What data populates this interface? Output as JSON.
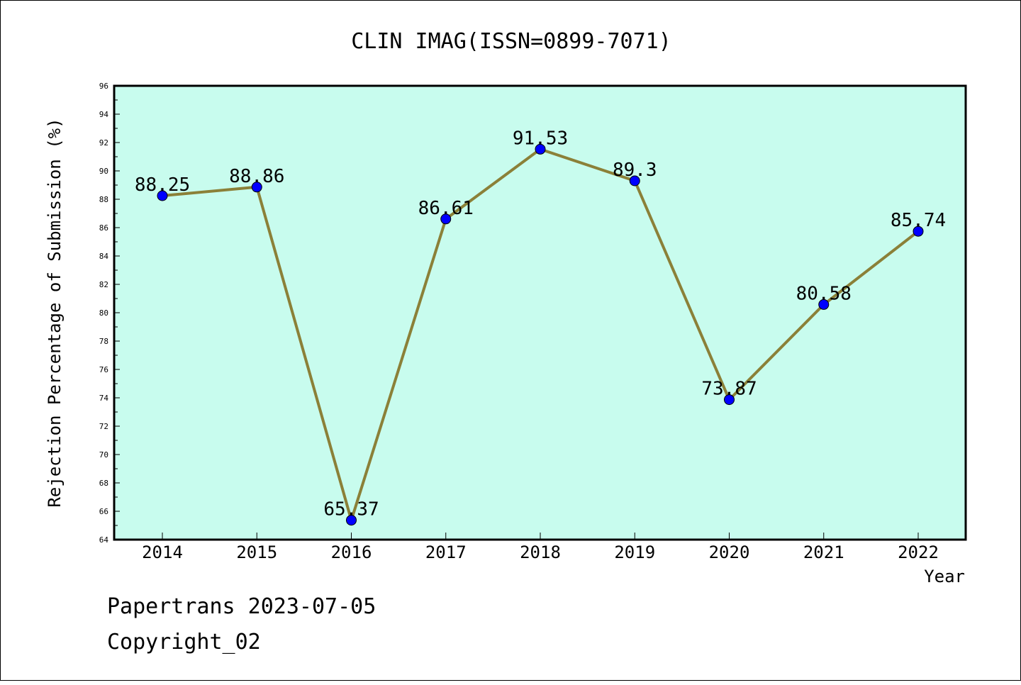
{
  "chart_data": {
    "type": "line",
    "title": "CLIN IMAG(ISSN=0899-7071)",
    "xlabel": "Year",
    "ylabel": "Rejection Percentage of Submission (%)",
    "categories": [
      "2014",
      "2015",
      "2016",
      "2017",
      "2018",
      "2019",
      "2020",
      "2021",
      "2022"
    ],
    "values": [
      88.25,
      88.86,
      65.37,
      86.61,
      91.53,
      89.3,
      73.87,
      80.58,
      85.74
    ],
    "data_labels": [
      "88.25",
      "88.86",
      "65.37",
      "86.61",
      "91.53",
      "89.3",
      "73.87",
      "80.58",
      "85.74"
    ],
    "ylim": [
      64,
      96
    ],
    "yticks": [
      "64",
      "66",
      "68",
      "70",
      "72",
      "74",
      "76",
      "78",
      "80",
      "82",
      "84",
      "86",
      "88",
      "90",
      "92",
      "94",
      "96"
    ],
    "grid": false,
    "legend": "none",
    "colors": {
      "plot_background": "#c8fcee",
      "line": "#8b8038",
      "marker": "#0000ff"
    }
  },
  "footer": {
    "line1": "Papertrans 2023-07-05",
    "line2": "Copyright_02"
  }
}
